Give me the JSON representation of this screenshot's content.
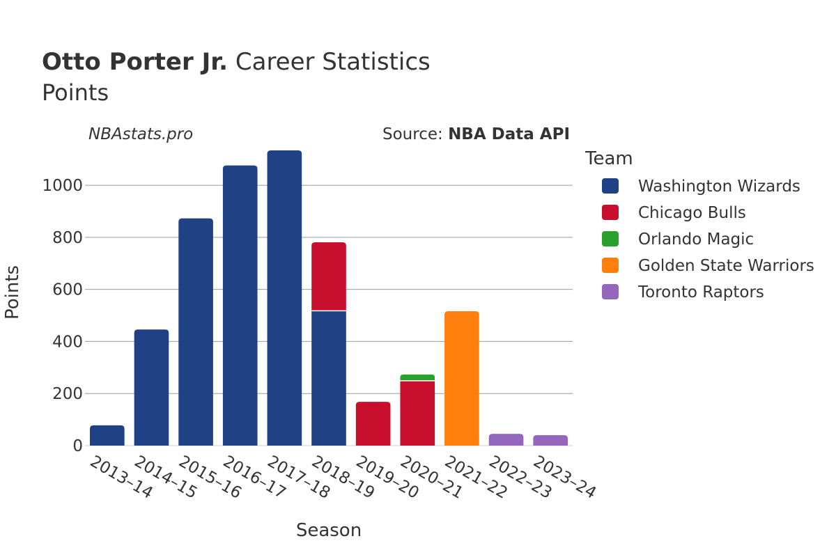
{
  "title": {
    "bold": "Otto Porter Jr.",
    "rest": " Career Statistics",
    "subtitle": "Points"
  },
  "watermark": "NBAstats.pro",
  "source": {
    "prefix": "Source: ",
    "name": "NBA Data API"
  },
  "legend": {
    "title": "Team",
    "placement": "right"
  },
  "chart_data": {
    "type": "bar",
    "stacked": true,
    "xlabel": "Season",
    "ylabel": "Points",
    "ylim": [
      0,
      1150
    ],
    "yticks": [
      0,
      200,
      400,
      600,
      800,
      1000
    ],
    "grid": true,
    "categories": [
      "2013–14",
      "2014–15",
      "2015–16",
      "2016–17",
      "2017–18",
      "2018–19",
      "2019–20",
      "2020–21",
      "2021–22",
      "2022–23",
      "2023–24"
    ],
    "series": [
      {
        "name": "Washington Wizards",
        "color": "#1f4287",
        "values": [
          78,
          446,
          873,
          1076,
          1134,
          518,
          0,
          0,
          0,
          0,
          0
        ]
      },
      {
        "name": "Chicago Bulls",
        "color": "#c8102e",
        "values": [
          0,
          0,
          0,
          0,
          0,
          263,
          168,
          249,
          0,
          0,
          0
        ]
      },
      {
        "name": "Orlando Magic",
        "color": "#2ca02c",
        "values": [
          0,
          0,
          0,
          0,
          0,
          0,
          0,
          24,
          0,
          0,
          0
        ]
      },
      {
        "name": "Golden State Warriors",
        "color": "#ff7f0e",
        "values": [
          0,
          0,
          0,
          0,
          0,
          0,
          0,
          0,
          516,
          0,
          0
        ]
      },
      {
        "name": "Toronto Raptors",
        "color": "#9467bd",
        "values": [
          0,
          0,
          0,
          0,
          0,
          0,
          0,
          0,
          0,
          45,
          40
        ]
      }
    ]
  }
}
